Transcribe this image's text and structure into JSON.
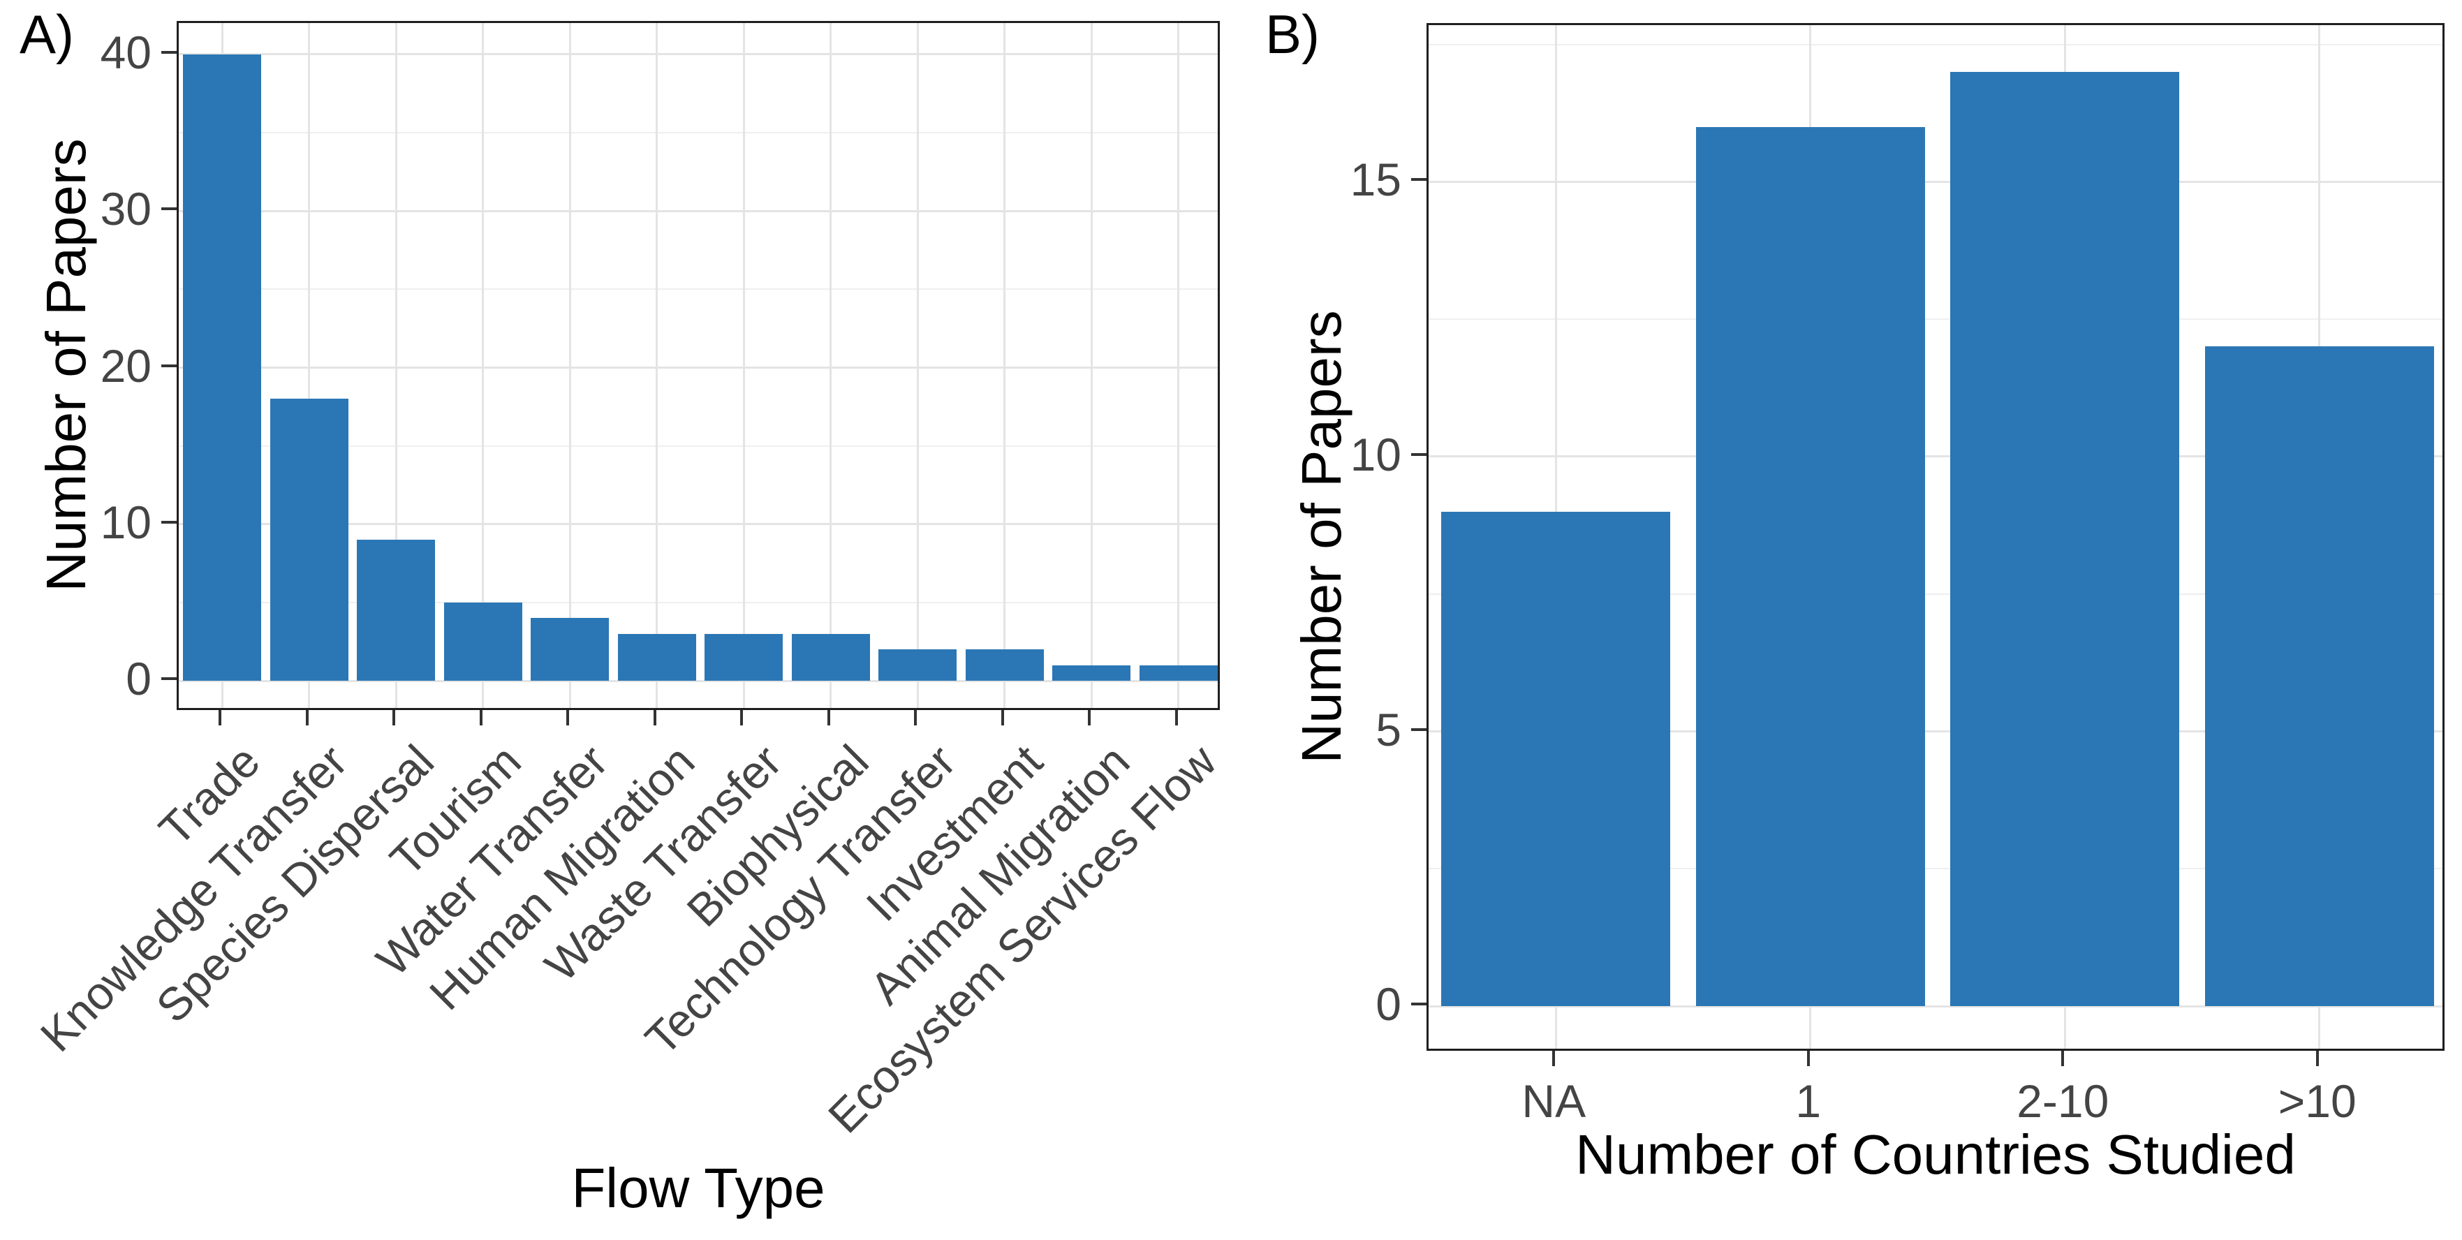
{
  "figure": {
    "background": "#ffffff",
    "style": {
      "bar_color": "#2b77b5",
      "grid_major_color": "#e4e4e4",
      "grid_minor_color": "#efefef",
      "panel_border_color": "#1f1f1f",
      "tick_color": "#333333",
      "tick_label_color": "#444444",
      "axis_title_color": "#000000"
    }
  },
  "chart_data": [
    {
      "type": "bar",
      "tag": "A)",
      "title": "",
      "xlabel": "Flow Type",
      "ylabel": "Number of Papers",
      "categories": [
        "Trade",
        "Knowledge Transfer",
        "Species Dispersal",
        "Tourism",
        "Water Transfer",
        "Human Migration",
        "Waste Transfer",
        "Biophysical",
        "Technology Transfer",
        "Investment",
        "Animal Migration",
        "Ecosystem Services Flow"
      ],
      "values": [
        40,
        18,
        9,
        5,
        4,
        3,
        3,
        3,
        2,
        2,
        1,
        1
      ],
      "ylim": [
        0,
        40
      ],
      "yticks": [
        0,
        10,
        20,
        30,
        40
      ],
      "yticks_minor": [
        5,
        15,
        25,
        35
      ],
      "grid": "on",
      "legend": "none",
      "x_tick_label_rotation_deg": 45
    },
    {
      "type": "bar",
      "tag": "B)",
      "title": "",
      "xlabel": "Number of Countries Studied",
      "ylabel": "Number of Papers",
      "categories": [
        "NA",
        "1",
        "2-10",
        ">10"
      ],
      "values": [
        9,
        16,
        17,
        12
      ],
      "ylim": [
        0,
        17
      ],
      "yticks": [
        0,
        5,
        10,
        15
      ],
      "yticks_minor": [
        2.5,
        7.5,
        12.5,
        17.5
      ],
      "grid": "on",
      "legend": "none",
      "x_tick_label_rotation_deg": 0
    }
  ]
}
